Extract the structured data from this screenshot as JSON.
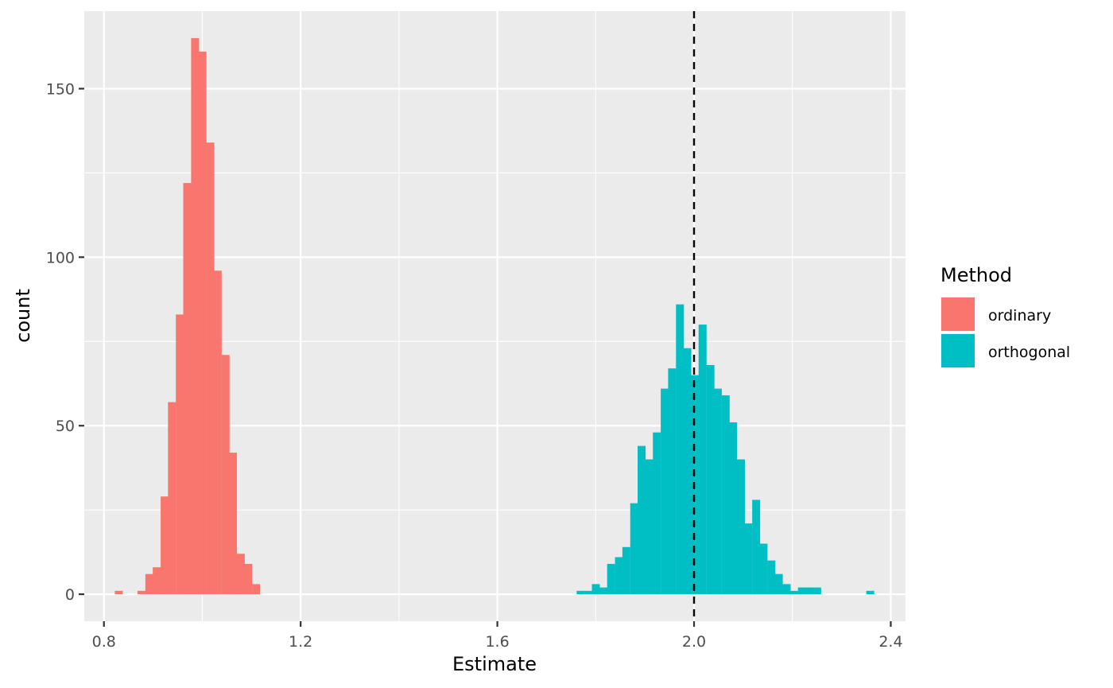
{
  "chart_data": {
    "type": "bar",
    "subtype": "histogram",
    "xlabel": "Estimate",
    "ylabel": "count",
    "xlim": [
      0.76,
      2.43
    ],
    "ylim": [
      -8,
      173
    ],
    "x_ticks": [
      0.8,
      1.2,
      1.6,
      2.0,
      2.4
    ],
    "x_tick_labels": [
      "0.8",
      "1.2",
      "1.6",
      "2.0",
      "2.4"
    ],
    "y_ticks": [
      0,
      50,
      100,
      150
    ],
    "y_tick_labels": [
      "0",
      "50",
      "100",
      "150"
    ],
    "grid": true,
    "bin_width": 0.0155,
    "reference_line": {
      "x": 2.0,
      "style": "dashed",
      "color": "#000000"
    },
    "legend": {
      "title": "Method",
      "position": "right"
    },
    "series": [
      {
        "name": "ordinary",
        "color": "#F8766D",
        "bins": [
          {
            "x": 0.83,
            "count": 1
          },
          {
            "x": 0.845,
            "count": 0
          },
          {
            "x": 0.861,
            "count": 0
          },
          {
            "x": 0.876,
            "count": 1
          },
          {
            "x": 0.892,
            "count": 6
          },
          {
            "x": 0.907,
            "count": 8
          },
          {
            "x": 0.923,
            "count": 29
          },
          {
            "x": 0.938,
            "count": 57
          },
          {
            "x": 0.954,
            "count": 83
          },
          {
            "x": 0.969,
            "count": 122
          },
          {
            "x": 0.985,
            "count": 165
          },
          {
            "x": 1.0,
            "count": 161
          },
          {
            "x": 1.016,
            "count": 134
          },
          {
            "x": 1.031,
            "count": 96
          },
          {
            "x": 1.047,
            "count": 71
          },
          {
            "x": 1.062,
            "count": 42
          },
          {
            "x": 1.078,
            "count": 12
          },
          {
            "x": 1.093,
            "count": 9
          },
          {
            "x": 1.109,
            "count": 3
          }
        ]
      },
      {
        "name": "orthogonal",
        "color": "#00BFC4",
        "bins": [
          {
            "x": 1.769,
            "count": 1
          },
          {
            "x": 1.785,
            "count": 1
          },
          {
            "x": 1.8,
            "count": 3
          },
          {
            "x": 1.816,
            "count": 2
          },
          {
            "x": 1.831,
            "count": 9
          },
          {
            "x": 1.847,
            "count": 11
          },
          {
            "x": 1.862,
            "count": 14
          },
          {
            "x": 1.878,
            "count": 27
          },
          {
            "x": 1.893,
            "count": 44
          },
          {
            "x": 1.909,
            "count": 40
          },
          {
            "x": 1.924,
            "count": 48
          },
          {
            "x": 1.94,
            "count": 61
          },
          {
            "x": 1.955,
            "count": 67
          },
          {
            "x": 1.971,
            "count": 86
          },
          {
            "x": 1.986,
            "count": 73
          },
          {
            "x": 2.002,
            "count": 65
          },
          {
            "x": 2.017,
            "count": 80
          },
          {
            "x": 2.033,
            "count": 68
          },
          {
            "x": 2.048,
            "count": 61
          },
          {
            "x": 2.064,
            "count": 59
          },
          {
            "x": 2.079,
            "count": 51
          },
          {
            "x": 2.095,
            "count": 40
          },
          {
            "x": 2.11,
            "count": 21
          },
          {
            "x": 2.126,
            "count": 28
          },
          {
            "x": 2.141,
            "count": 15
          },
          {
            "x": 2.157,
            "count": 10
          },
          {
            "x": 2.172,
            "count": 6
          },
          {
            "x": 2.188,
            "count": 3
          },
          {
            "x": 2.203,
            "count": 1
          },
          {
            "x": 2.219,
            "count": 2
          },
          {
            "x": 2.234,
            "count": 2
          },
          {
            "x": 2.25,
            "count": 2
          },
          {
            "x": 2.265,
            "count": 0
          },
          {
            "x": 2.281,
            "count": 0
          },
          {
            "x": 2.296,
            "count": 0
          },
          {
            "x": 2.312,
            "count": 0
          },
          {
            "x": 2.327,
            "count": 0
          },
          {
            "x": 2.343,
            "count": 0
          },
          {
            "x": 2.358,
            "count": 1
          }
        ]
      }
    ]
  }
}
